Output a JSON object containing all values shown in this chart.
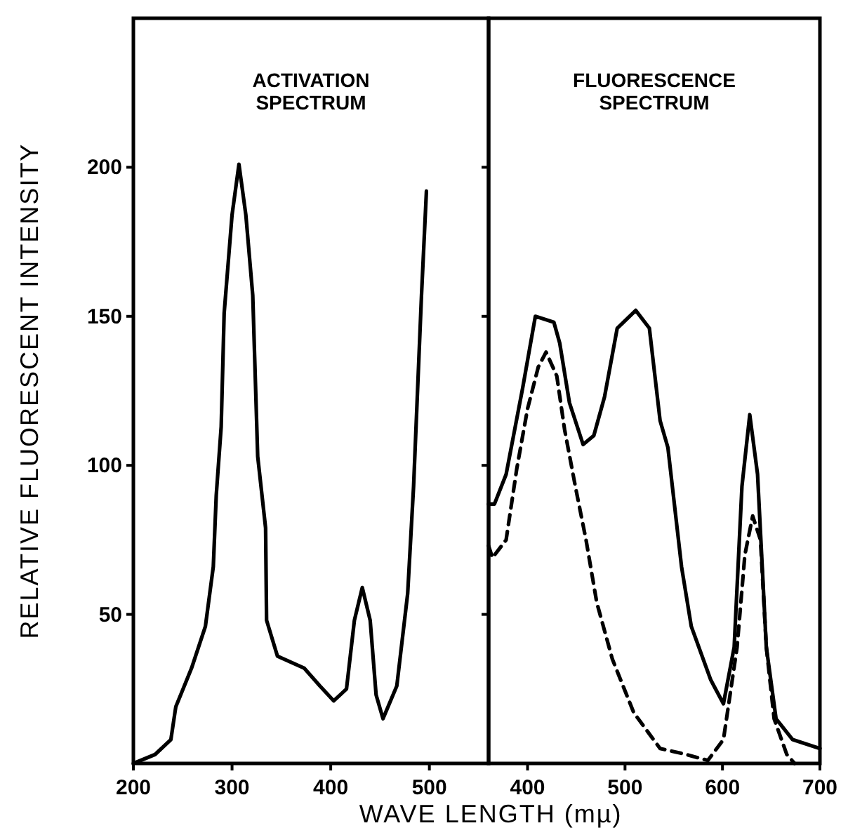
{
  "chart_data": [
    {
      "type": "line",
      "title": "ACTIVATION\nSPECTRUM",
      "xlabel": "WAVE LENGTH (mµ)",
      "ylabel": "RELATIVE FLUORESCENT INTENSITY",
      "xlim": [
        200,
        560
      ],
      "xticks": [
        200,
        300,
        400,
        500
      ],
      "ylim": [
        0,
        250
      ],
      "yticks": [
        50,
        100,
        150,
        200
      ],
      "line_style": "solid",
      "series": [
        {
          "color": "#000000",
          "x": [
            200,
            222,
            238,
            243,
            259,
            273,
            281,
            284,
            289,
            292,
            300,
            307,
            314,
            321,
            326,
            334,
            335,
            346,
            373,
            389,
            403,
            416,
            424,
            432,
            440,
            446,
            453,
            467,
            478,
            484,
            492,
            497
          ],
          "values": [
            0,
            3,
            8,
            19,
            32,
            46,
            66,
            90,
            113,
            151,
            184,
            201,
            184,
            157,
            103,
            79,
            48,
            36,
            32,
            26,
            21,
            25,
            48,
            59,
            48,
            23,
            15,
            26,
            57,
            93,
            157,
            192
          ]
        }
      ]
    },
    {
      "type": "line",
      "title": "FLUORESCENCE\nSPECTRUM",
      "xlim": [
        360,
        700
      ],
      "xticks": [
        400,
        500,
        600,
        700
      ],
      "ylim": [
        0,
        250
      ],
      "yticks": [
        50,
        100,
        150,
        200
      ],
      "tick_labels": "x",
      "series": [
        {
          "color": "#000000",
          "line_style": "solid",
          "x": [
            360,
            366,
            378,
            395,
            408,
            427,
            433,
            443,
            457,
            468,
            479,
            492,
            511,
            525,
            536,
            544,
            558,
            568,
            588,
            601,
            612,
            620,
            628,
            636,
            645,
            655,
            672,
            700
          ],
          "values": [
            87,
            87,
            97,
            126,
            150,
            148,
            141,
            121,
            107,
            110,
            123,
            146,
            152,
            146,
            115,
            106,
            66,
            46,
            28,
            20,
            39,
            93,
            117,
            97,
            39,
            15,
            8,
            5
          ]
        },
        {
          "color": "#000000",
          "line_style": "dashed",
          "x": [
            360,
            364,
            378,
            389,
            400,
            411,
            419,
            430,
            438,
            449,
            460,
            471,
            487,
            509,
            536,
            563,
            585,
            601,
            615,
            623,
            631,
            639,
            645,
            653,
            666,
            674
          ],
          "values": [
            73,
            69,
            75,
            99,
            119,
            133,
            138,
            130,
            112,
            93,
            75,
            54,
            35,
            17,
            5,
            3,
            1,
            8,
            39,
            70,
            83,
            75,
            39,
            15,
            3,
            0
          ]
        }
      ]
    }
  ]
}
